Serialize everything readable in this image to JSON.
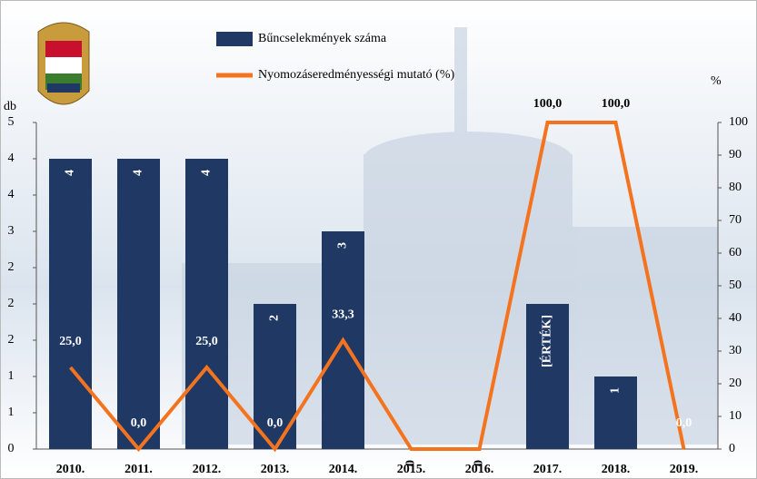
{
  "chart_data": {
    "type": "bar",
    "ylabel": "db",
    "y2label": "%",
    "categories": [
      "2010.",
      "2011.",
      "2012.",
      "2013.",
      "2014.",
      "2015.",
      "2016.",
      "2017.",
      "2018.",
      "2019."
    ],
    "series": [
      {
        "name": "Bűncselekmények száma",
        "type": "bar",
        "color": "#1f3864",
        "values": [
          4,
          4,
          4,
          2,
          3,
          0,
          0,
          2,
          1,
          null
        ],
        "value_labels": [
          "4",
          "4",
          "4",
          "2",
          "3",
          "0",
          "0",
          "[ÉRTÉK]",
          "1",
          null
        ]
      },
      {
        "name": "Nyomozáseredményességi mutató (%)",
        "type": "line",
        "axis": "y2",
        "color": "#f4731f",
        "values": [
          25,
          0,
          25,
          0,
          33.3,
          0,
          0,
          100,
          100,
          0
        ],
        "value_labels": [
          "25,0",
          "0,0",
          "25,0",
          "0,0",
          "33,3",
          null,
          null,
          "100,0",
          "100,0",
          "0,0"
        ]
      }
    ],
    "ylim": [
      0,
      4.5
    ],
    "yticks": [
      0,
      {
        "value": 0.5,
        "label": "1"
      },
      1,
      {
        "value": 1.5,
        "label": "2"
      },
      2,
      {
        "value": 2.5,
        "label": "2"
      },
      3,
      {
        "value": 3.5,
        "label": "4"
      },
      4,
      {
        "value": 4.5,
        "label": "5"
      }
    ],
    "y2lim": [
      0,
      100
    ],
    "y2ticks": [
      0,
      10,
      20,
      30,
      40,
      50,
      60,
      70,
      80,
      90,
      100
    ]
  }
}
